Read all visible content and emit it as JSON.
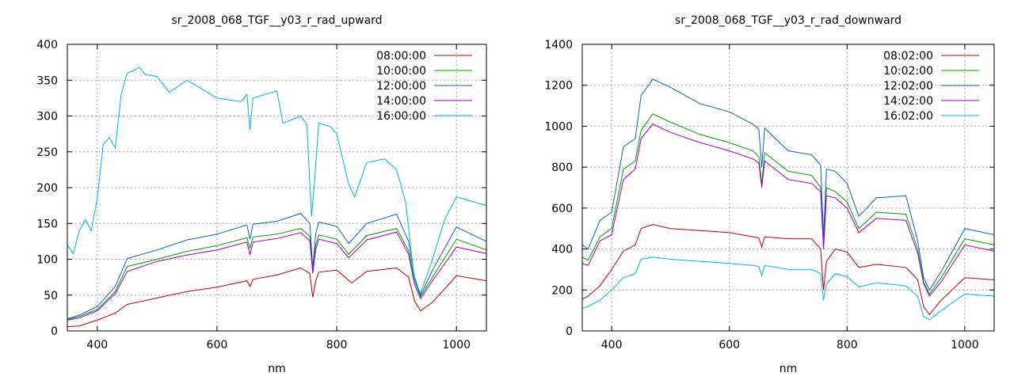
{
  "chart_data": [
    {
      "type": "line",
      "title": "sr_2008_068_TGF__y03_r_rad_upward",
      "xlabel": "nm",
      "ylabel": "",
      "xlim": [
        350,
        1050
      ],
      "ylim": [
        0,
        400
      ],
      "xticks": [
        400,
        600,
        800,
        1000
      ],
      "yticks": [
        0,
        50,
        100,
        150,
        200,
        250,
        300,
        350,
        400
      ],
      "grid": true,
      "legend": "top-right",
      "series": [
        {
          "name": "08:00:00",
          "color": "#c00000",
          "x": [
            350,
            370,
            400,
            430,
            450,
            500,
            550,
            600,
            650,
            655,
            660,
            700,
            740,
            755,
            760,
            765,
            770,
            800,
            825,
            850,
            900,
            920,
            930,
            940,
            960,
            1000,
            1050
          ],
          "y": [
            6,
            7,
            15,
            25,
            37,
            46,
            55,
            61,
            70,
            62,
            72,
            78,
            88,
            80,
            47,
            70,
            82,
            85,
            67,
            83,
            88,
            75,
            42,
            28,
            40,
            77,
            70
          ]
        },
        {
          "name": "10:00:00",
          "color": "#00a000",
          "x": [
            350,
            370,
            400,
            430,
            450,
            500,
            550,
            600,
            650,
            655,
            660,
            700,
            740,
            755,
            760,
            765,
            770,
            800,
            820,
            850,
            900,
            920,
            930,
            940,
            960,
            1000,
            1050
          ],
          "y": [
            16,
            20,
            30,
            55,
            90,
            100,
            111,
            119,
            130,
            115,
            131,
            135,
            143,
            132,
            85,
            120,
            134,
            128,
            107,
            133,
            143,
            112,
            70,
            48,
            75,
            128,
            113
          ]
        },
        {
          "name": "12:00:00",
          "color": "#1060c0",
          "x": [
            350,
            370,
            400,
            430,
            450,
            500,
            550,
            600,
            650,
            655,
            660,
            700,
            740,
            755,
            760,
            765,
            770,
            800,
            820,
            850,
            900,
            920,
            930,
            940,
            960,
            1000,
            1050
          ],
          "y": [
            17,
            22,
            34,
            62,
            101,
            113,
            127,
            135,
            148,
            128,
            149,
            153,
            164,
            150,
            88,
            136,
            152,
            146,
            122,
            150,
            163,
            125,
            75,
            50,
            85,
            145,
            125
          ]
        },
        {
          "name": "14:00:00",
          "color": "#a000c0",
          "x": [
            350,
            370,
            400,
            430,
            450,
            500,
            550,
            600,
            650,
            655,
            660,
            700,
            740,
            755,
            760,
            765,
            770,
            800,
            820,
            850,
            900,
            920,
            930,
            940,
            960,
            1000,
            1050
          ],
          "y": [
            15,
            18,
            28,
            52,
            83,
            97,
            106,
            113,
            124,
            106,
            124,
            129,
            137,
            126,
            80,
            114,
            128,
            122,
            102,
            127,
            138,
            107,
            65,
            45,
            70,
            117,
            108
          ]
        },
        {
          "name": "16:00:00",
          "color": "#00b8d8",
          "x": [
            350,
            360,
            370,
            380,
            390,
            400,
            410,
            420,
            430,
            440,
            450,
            460,
            470,
            480,
            500,
            520,
            550,
            600,
            640,
            650,
            655,
            660,
            700,
            710,
            740,
            750,
            758,
            762,
            770,
            790,
            800,
            820,
            830,
            850,
            880,
            900,
            915,
            930,
            940,
            960,
            980,
            1000,
            1050
          ],
          "y": [
            120,
            108,
            140,
            155,
            140,
            185,
            260,
            270,
            255,
            330,
            360,
            363,
            368,
            358,
            355,
            333,
            350,
            325,
            320,
            330,
            280,
            325,
            335,
            290,
            300,
            288,
            160,
            200,
            290,
            285,
            275,
            205,
            187,
            235,
            240,
            225,
            180,
            70,
            53,
            100,
            155,
            187,
            175
          ]
        }
      ]
    },
    {
      "type": "line",
      "title": "sr_2008_068_TGF__y03_r_rad_downward",
      "xlabel": "nm",
      "ylabel": "",
      "xlim": [
        350,
        1050
      ],
      "ylim": [
        0,
        1400
      ],
      "xticks": [
        400,
        600,
        800,
        1000
      ],
      "yticks": [
        0,
        200,
        400,
        600,
        800,
        1000,
        1200,
        1400
      ],
      "grid": true,
      "legend": "top-right",
      "series": [
        {
          "name": "08:02:00",
          "color": "#c00000",
          "x": [
            350,
            360,
            380,
            400,
            420,
            440,
            450,
            470,
            500,
            550,
            600,
            640,
            650,
            655,
            660,
            700,
            740,
            755,
            760,
            765,
            780,
            800,
            820,
            850,
            900,
            920,
            930,
            940,
            960,
            1000,
            1050
          ],
          "y": [
            155,
            170,
            220,
            300,
            390,
            420,
            500,
            520,
            500,
            490,
            480,
            460,
            455,
            410,
            460,
            450,
            450,
            400,
            200,
            340,
            400,
            385,
            310,
            325,
            310,
            250,
            120,
            80,
            150,
            260,
            250
          ]
        },
        {
          "name": "10:02:00",
          "color": "#00a000",
          "x": [
            350,
            360,
            380,
            400,
            420,
            440,
            450,
            470,
            500,
            550,
            600,
            640,
            650,
            655,
            660,
            700,
            740,
            755,
            760,
            765,
            780,
            800,
            820,
            850,
            900,
            920,
            930,
            940,
            960,
            1000,
            1050
          ],
          "y": [
            360,
            345,
            460,
            500,
            790,
            830,
            980,
            1060,
            1020,
            960,
            920,
            880,
            850,
            720,
            870,
            780,
            760,
            700,
            420,
            700,
            680,
            630,
            500,
            580,
            570,
            400,
            240,
            180,
            260,
            450,
            420
          ]
        },
        {
          "name": "12:02:00",
          "color": "#1060c0",
          "x": [
            350,
            360,
            380,
            400,
            420,
            440,
            450,
            470,
            500,
            550,
            600,
            640,
            650,
            655,
            660,
            700,
            740,
            755,
            760,
            765,
            780,
            800,
            820,
            850,
            900,
            920,
            930,
            940,
            960,
            1000,
            1050
          ],
          "y": [
            420,
            400,
            540,
            580,
            900,
            940,
            1150,
            1230,
            1190,
            1110,
            1070,
            1010,
            985,
            800,
            990,
            880,
            860,
            810,
            460,
            790,
            780,
            720,
            560,
            650,
            660,
            440,
            260,
            200,
            290,
            500,
            470
          ]
        },
        {
          "name": "14:02:00",
          "color": "#a000c0",
          "x": [
            350,
            360,
            380,
            400,
            420,
            440,
            450,
            470,
            500,
            550,
            600,
            640,
            650,
            655,
            660,
            700,
            740,
            755,
            760,
            765,
            780,
            800,
            820,
            850,
            900,
            920,
            930,
            940,
            960,
            1000,
            1050
          ],
          "y": [
            330,
            320,
            440,
            470,
            740,
            790,
            940,
            1010,
            970,
            920,
            880,
            840,
            820,
            700,
            830,
            740,
            720,
            680,
            400,
            660,
            650,
            600,
            480,
            550,
            540,
            380,
            230,
            170,
            240,
            420,
            390
          ]
        },
        {
          "name": "16:02:00",
          "color": "#00b8d8",
          "x": [
            350,
            360,
            380,
            400,
            420,
            440,
            450,
            470,
            500,
            550,
            600,
            640,
            650,
            655,
            660,
            700,
            740,
            755,
            760,
            765,
            780,
            800,
            820,
            850,
            900,
            920,
            930,
            940,
            960,
            1000,
            1050
          ],
          "y": [
            110,
            120,
            150,
            200,
            260,
            280,
            350,
            360,
            350,
            340,
            330,
            320,
            315,
            270,
            320,
            300,
            300,
            280,
            150,
            230,
            280,
            265,
            215,
            235,
            220,
            170,
            70,
            55,
            100,
            180,
            170
          ]
        }
      ]
    }
  ]
}
